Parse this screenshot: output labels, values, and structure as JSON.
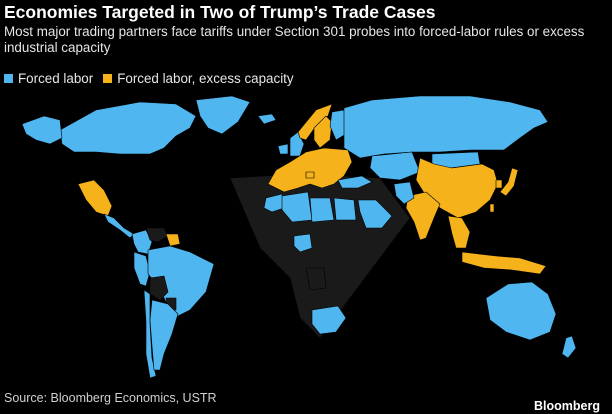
{
  "title": "Economies Targeted in Two of Trump’s Trade Cases",
  "subtitle": "Most major trading partners face tariffs under Section 301 probes into forced-labor rules or excess industrial capacity",
  "legend": [
    {
      "label": "Forced labor",
      "color": "#4fb6ef"
    },
    {
      "label": "Forced labor, excess capacity",
      "color": "#f5b21a"
    }
  ],
  "colors": {
    "forced_labor": "#4fb6ef",
    "forced_labor_excess_capacity": "#f5b21a",
    "not_targeted": "#1a1a1a",
    "background": "#000000"
  },
  "map": {
    "regions": [
      {
        "name": "Canada",
        "category": "forced_labor"
      },
      {
        "name": "Alaska",
        "category": "forced_labor"
      },
      {
        "name": "Greenland",
        "category": "forced_labor"
      },
      {
        "name": "Mexico",
        "category": "forced_labor_excess_capacity"
      },
      {
        "name": "Central America",
        "category": "forced_labor"
      },
      {
        "name": "Colombia",
        "category": "forced_labor"
      },
      {
        "name": "Venezuela",
        "category": "not_targeted"
      },
      {
        "name": "Guyana",
        "category": "forced_labor_excess_capacity"
      },
      {
        "name": "Peru",
        "category": "forced_labor"
      },
      {
        "name": "Brazil",
        "category": "forced_labor"
      },
      {
        "name": "Bolivia",
        "category": "not_targeted"
      },
      {
        "name": "Paraguay",
        "category": "not_targeted"
      },
      {
        "name": "Chile",
        "category": "forced_labor"
      },
      {
        "name": "Argentina",
        "category": "forced_labor"
      },
      {
        "name": "Iceland",
        "category": "forced_labor"
      },
      {
        "name": "United Kingdom",
        "category": "forced_labor"
      },
      {
        "name": "Ireland",
        "category": "forced_labor"
      },
      {
        "name": "Norway",
        "category": "forced_labor_excess_capacity"
      },
      {
        "name": "Sweden",
        "category": "forced_labor_excess_capacity"
      },
      {
        "name": "Finland",
        "category": "forced_labor"
      },
      {
        "name": "Russia",
        "category": "forced_labor"
      },
      {
        "name": "European Union",
        "category": "forced_labor_excess_capacity"
      },
      {
        "name": "Switzerland",
        "category": "forced_labor_excess_capacity"
      },
      {
        "name": "Turkey",
        "category": "forced_labor"
      },
      {
        "name": "Morocco",
        "category": "forced_labor"
      },
      {
        "name": "Algeria",
        "category": "forced_labor"
      },
      {
        "name": "Libya",
        "category": "forced_labor"
      },
      {
        "name": "Egypt",
        "category": "forced_labor"
      },
      {
        "name": "Saudi Arabia",
        "category": "forced_labor"
      },
      {
        "name": "Nigeria",
        "category": "forced_labor"
      },
      {
        "name": "South Africa",
        "category": "forced_labor"
      },
      {
        "name": "Angola",
        "category": "not_targeted"
      },
      {
        "name": "Kazakhstan",
        "category": "forced_labor"
      },
      {
        "name": "Mongolia",
        "category": "forced_labor"
      },
      {
        "name": "China",
        "category": "forced_labor_excess_capacity"
      },
      {
        "name": "India",
        "category": "forced_labor_excess_capacity"
      },
      {
        "name": "Pakistan",
        "category": "forced_labor"
      },
      {
        "name": "Japan",
        "category": "forced_labor_excess_capacity"
      },
      {
        "name": "South Korea",
        "category": "forced_labor_excess_capacity"
      },
      {
        "name": "Taiwan",
        "category": "forced_labor_excess_capacity"
      },
      {
        "name": "Southeast Asia",
        "category": "forced_labor_excess_capacity"
      },
      {
        "name": "Indonesia",
        "category": "forced_labor_excess_capacity"
      },
      {
        "name": "Australia",
        "category": "forced_labor"
      },
      {
        "name": "New Zealand",
        "category": "forced_labor"
      }
    ]
  },
  "source": "Source: Bloomberg Economics, USTR",
  "logo": "Bloomberg"
}
